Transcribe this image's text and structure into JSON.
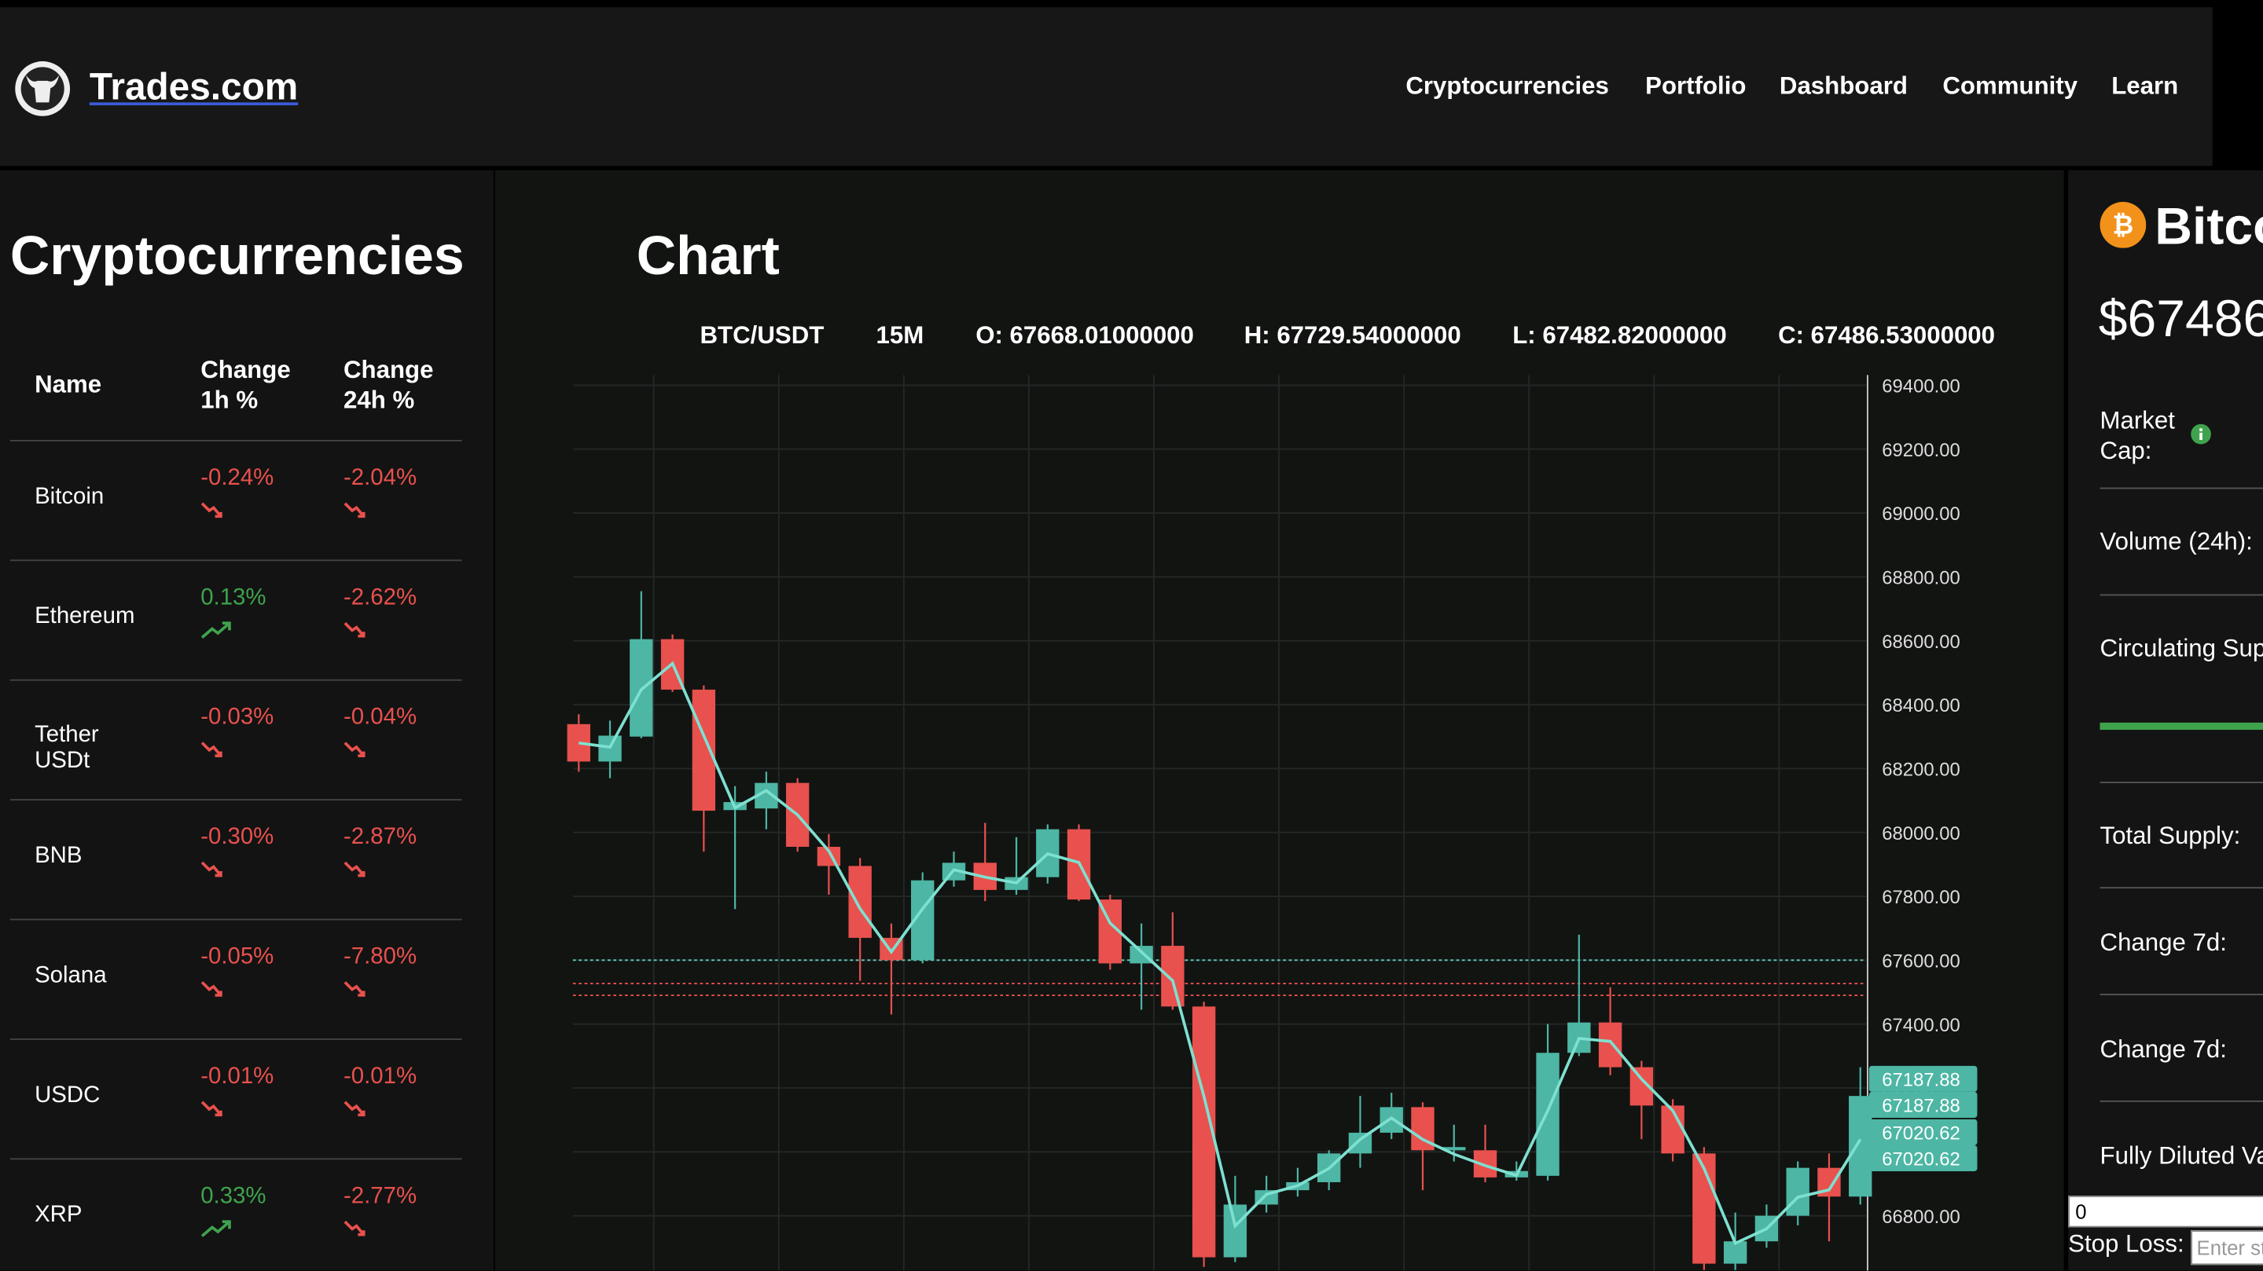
{
  "header": {
    "brand": "Trades.com",
    "nav": [
      "Cryptocurrencies",
      "Portfolio",
      "Dashboard",
      "Community",
      "Learn"
    ]
  },
  "sidebar": {
    "title": "Cryptocurrencies",
    "table": {
      "headers": [
        "Name",
        "Change 1h %",
        "Change 24h %"
      ],
      "rows": [
        [
          "Bitcoin",
          "-0.24%",
          "-2.04%"
        ],
        [
          "Ethereum",
          "0.13%",
          "-2.62%"
        ],
        [
          "Tether USDt",
          "-0.03%",
          "-0.04%"
        ],
        [
          "BNB",
          "-0.30%",
          "-2.87%"
        ],
        [
          "Solana",
          "-0.05%",
          "-7.80%"
        ],
        [
          "USDC",
          "-0.01%",
          "-0.01%"
        ],
        [
          "XRP",
          "0.33%",
          "-2.77%"
        ]
      ]
    }
  },
  "chart_data": {
    "type": "candlestick",
    "title": "Chart",
    "symbol": "BTC/USDT",
    "interval": "15M",
    "ohlc_labels": [
      "O: 67668.01000000",
      "H: 67729.54000000",
      "L: 67482.82000000",
      "C: 67486.53000000"
    ],
    "up_color": "#4db6a4",
    "down_color": "#e8514d",
    "ylim": [
      66628,
      69432
    ],
    "yticks": [
      {
        "value": 66800,
        "label": "66800.00"
      },
      {
        "value": 67000,
        "label": "67000.00"
      },
      {
        "value": 67200,
        "label": "67200.00"
      },
      {
        "value": 67400,
        "label": "67400.00"
      },
      {
        "value": 67600,
        "label": "67600.00"
      },
      {
        "value": 67800,
        "label": "67800.00"
      },
      {
        "value": 68000,
        "label": "68000.00"
      },
      {
        "value": 68200,
        "label": "68200.00"
      },
      {
        "value": 68400,
        "label": "68400.00"
      },
      {
        "value": 68600,
        "label": "68600.00"
      },
      {
        "value": 68800,
        "label": "68800.00"
      },
      {
        "value": 69000,
        "label": "69000.00"
      },
      {
        "value": 69200,
        "label": "69200.00"
      },
      {
        "value": 69400,
        "label": "69400.00"
      }
    ],
    "grid": true,
    "open": [
      68339,
      68222,
      68300,
      68605,
      68447,
      68070,
      68075,
      68155,
      67955,
      67895,
      67670,
      67600,
      67850,
      67905,
      67820,
      67860,
      68010,
      67790,
      67590,
      67645,
      67455,
      66670,
      66835,
      66880,
      66905,
      66995,
      67060,
      67140,
      67005,
      67005,
      66920,
      66925,
      67310,
      67405,
      67265,
      67145,
      66995,
      66650,
      66720,
      66800,
      66950,
      66860
    ],
    "high": [
      68370,
      68350,
      68755,
      68620,
      68460,
      68145,
      68190,
      68170,
      67995,
      67920,
      67715,
      67875,
      67940,
      68030,
      67985,
      68025,
      68025,
      67805,
      67715,
      67750,
      67470,
      66925,
      66925,
      66950,
      67005,
      67175,
      67185,
      67155,
      67085,
      67085,
      66970,
      67400,
      67680,
      67515,
      67285,
      67165,
      67015,
      66810,
      66835,
      66970,
      66995,
      67265
    ],
    "low": [
      68190,
      68170,
      68295,
      68440,
      67940,
      67760,
      68010,
      67940,
      67805,
      67535,
      67430,
      67590,
      67830,
      67785,
      67805,
      67840,
      67785,
      67570,
      67445,
      67445,
      66640,
      66655,
      66810,
      66860,
      66880,
      66950,
      67040,
      66880,
      66970,
      66905,
      66910,
      66910,
      67300,
      67240,
      67040,
      66970,
      66630,
      66630,
      66700,
      66770,
      66720,
      66835
    ],
    "close": [
      68222,
      68303,
      68605,
      68447,
      68068,
      68095,
      68155,
      67955,
      67895,
      67670,
      67600,
      67850,
      67905,
      67820,
      67860,
      68010,
      67790,
      67590,
      67645,
      67455,
      66670,
      66835,
      66880,
      66905,
      66995,
      67060,
      67140,
      67005,
      67015,
      66920,
      66940,
      67310,
      67405,
      67265,
      67145,
      66995,
      66650,
      66720,
      66800,
      66950,
      66860,
      67175
    ],
    "line": {
      "color": "#7ee0d0",
      "values": [
        68280,
        68267,
        68447,
        68529,
        68303,
        68077,
        68131,
        68055,
        67942,
        67761,
        67626,
        67761,
        67883,
        67860,
        67842,
        67933,
        67906,
        67716,
        67626,
        67536,
        67174,
        66768,
        66867,
        66894,
        66948,
        67039,
        67106,
        67039,
        66993,
        66957,
        66926,
        67129,
        67355,
        67346,
        67228,
        67129,
        66948,
        66714,
        66759,
        66858,
        66881,
        67039
      ]
    },
    "ref_lines": [
      {
        "value": 67600,
        "color": "#5fd3c0"
      },
      {
        "value": 67527,
        "color": "#e8514d"
      },
      {
        "value": 67490,
        "color": "#e8514d"
      }
    ],
    "price_tags": [
      67187.88,
      67187.88,
      67020.62,
      67020.62
    ],
    "price_tag_color": "#4db6a4"
  },
  "detail": {
    "name": "Bitco",
    "price": "$67486",
    "labels": [
      "Market Cap:",
      "Volume (24h):",
      "Circulating Sup",
      "Total Supply:",
      "Change 7d:",
      "Change 7d:",
      "Fully Diluted Va"
    ],
    "amount": "0",
    "stop_loss_label": "Stop Loss:",
    "stop_loss_placeholder": "Enter st"
  }
}
